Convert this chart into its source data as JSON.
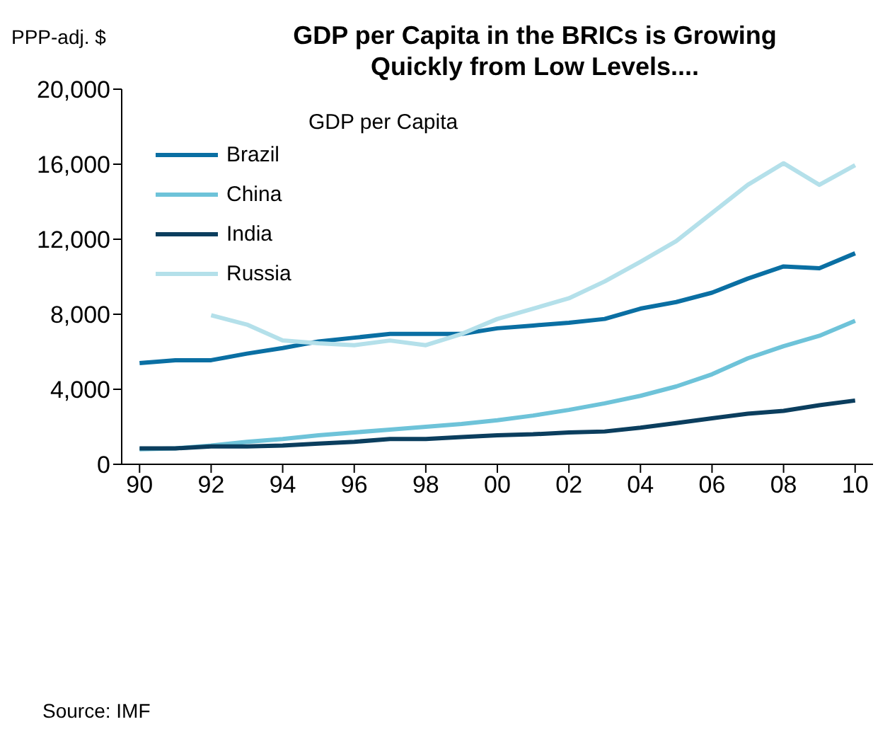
{
  "chart_data": {
    "type": "line",
    "title": "GDP per Capita in the BRICs is Growing Quickly from Low Levels....",
    "ylabel": "PPP-adj. $",
    "legend_title": "GDP per Capita",
    "annotations": [
      "Source: IMF"
    ],
    "x": [
      1990,
      1991,
      1992,
      1993,
      1994,
      1995,
      1996,
      1997,
      1998,
      1999,
      2000,
      2001,
      2002,
      2003,
      2004,
      2005,
      2006,
      2007,
      2008,
      2009,
      2010
    ],
    "series": [
      {
        "name": "Brazil",
        "color": "#0a6fa3",
        "values": [
          5400,
          5550,
          5550,
          5900,
          6200,
          6550,
          6750,
          6950,
          6950,
          6950,
          7250,
          7400,
          7550,
          7750,
          8300,
          8650,
          9150,
          9900,
          10550,
          10450,
          11250
        ]
      },
      {
        "name": "China",
        "color": "#6ec3d9",
        "values": [
          800,
          850,
          1000,
          1200,
          1350,
          1550,
          1700,
          1850,
          2000,
          2150,
          2350,
          2600,
          2900,
          3250,
          3650,
          4150,
          4800,
          5650,
          6300,
          6850,
          7650
        ]
      },
      {
        "name": "India",
        "color": "#0b3e5e",
        "values": [
          850,
          850,
          950,
          950,
          1000,
          1100,
          1200,
          1350,
          1350,
          1450,
          1550,
          1600,
          1700,
          1750,
          1950,
          2200,
          2450,
          2700,
          2850,
          3150,
          3400
        ]
      },
      {
        "name": "Russia",
        "color": "#b4e0ea",
        "values": [
          null,
          null,
          7950,
          7450,
          6600,
          6450,
          6350,
          6600,
          6350,
          6950,
          7750,
          8300,
          8850,
          9750,
          10800,
          11900,
          13400,
          14900,
          16050,
          14900,
          15950
        ]
      }
    ],
    "xlim": [
      1989.5,
      2010.5
    ],
    "xticks": [
      {
        "value": 1990,
        "label": "90"
      },
      {
        "value": 1992,
        "label": "92"
      },
      {
        "value": 1994,
        "label": "94"
      },
      {
        "value": 1996,
        "label": "96"
      },
      {
        "value": 1998,
        "label": "98"
      },
      {
        "value": 2000,
        "label": "00"
      },
      {
        "value": 2002,
        "label": "02"
      },
      {
        "value": 2004,
        "label": "04"
      },
      {
        "value": 2006,
        "label": "06"
      },
      {
        "value": 2008,
        "label": "08"
      },
      {
        "value": 2010,
        "label": "10"
      }
    ],
    "ylim": [
      0,
      20000
    ],
    "yticks": [
      0,
      {
        "value": 4000,
        "label": "4,000"
      },
      {
        "value": 8000,
        "label": "8,000"
      },
      {
        "value": 12000,
        "label": "12,000"
      },
      {
        "value": 16000,
        "label": "16,000"
      },
      {
        "value": 20000,
        "label": "20,000"
      }
    ],
    "grid": false,
    "legend": "top left",
    "marker": "none",
    "line_style": "solid"
  }
}
